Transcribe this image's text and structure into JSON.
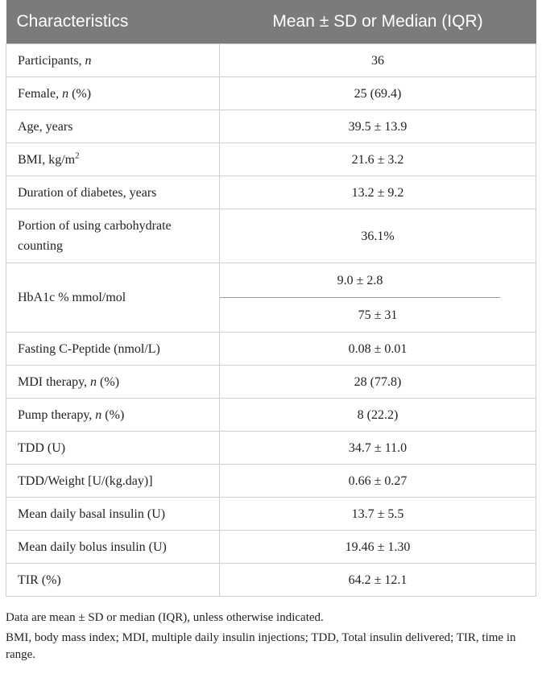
{
  "table": {
    "header": [
      "Characteristics",
      "Mean ± SD or Median (IQR)"
    ],
    "rows": [
      {
        "label": [
          {
            "text": "Participants, "
          },
          {
            "text": "n",
            "style": "italic"
          }
        ],
        "values": [
          "36"
        ]
      },
      {
        "label": [
          {
            "text": "Female, "
          },
          {
            "text": "n",
            "style": "italic"
          },
          {
            "text": " (%)"
          }
        ],
        "values": [
          "25 (69.4)"
        ]
      },
      {
        "label": [
          {
            "text": "Age, years"
          }
        ],
        "values": [
          "39.5 ± 13.9"
        ]
      },
      {
        "label": [
          {
            "text": "BMI, kg/m"
          },
          {
            "text": "2",
            "style": "sup"
          }
        ],
        "values": [
          "21.6 ± 3.2"
        ]
      },
      {
        "label": [
          {
            "text": "Duration of diabetes, years"
          }
        ],
        "values": [
          "13.2 ± 9.2"
        ]
      },
      {
        "label": [
          {
            "text": "Portion of using carbohydrate counting"
          }
        ],
        "values": [
          "36.1%"
        ]
      },
      {
        "label": [
          {
            "text": "HbA1c % mmol/mol"
          }
        ],
        "values": [
          "9.0 ± 2.8",
          "75 ± 31"
        ]
      },
      {
        "label": [
          {
            "text": "Fasting C-Peptide (nmol/L)"
          }
        ],
        "values": [
          "0.08 ± 0.01"
        ]
      },
      {
        "label": [
          {
            "text": "MDI therapy, "
          },
          {
            "text": "n",
            "style": "italic"
          },
          {
            "text": " (%)"
          }
        ],
        "values": [
          "28 (77.8)"
        ]
      },
      {
        "label": [
          {
            "text": "Pump therapy, "
          },
          {
            "text": "n",
            "style": "italic"
          },
          {
            "text": " (%)"
          }
        ],
        "values": [
          "8 (22.2)"
        ]
      },
      {
        "label": [
          {
            "text": "TDD (U)"
          }
        ],
        "values": [
          "34.7 ± 11.0"
        ]
      },
      {
        "label": [
          {
            "text": "TDD/Weight [U/(kg.day)]"
          }
        ],
        "values": [
          "0.66 ± 0.27"
        ]
      },
      {
        "label": [
          {
            "text": "Mean daily basal insulin (U)"
          }
        ],
        "values": [
          "13.7 ± 5.5"
        ]
      },
      {
        "label": [
          {
            "text": "Mean daily bolus insulin (U)"
          }
        ],
        "values": [
          "19.46 ± 1.30"
        ]
      },
      {
        "label": [
          {
            "text": "TIR (%)"
          }
        ],
        "values": [
          "64.2 ± 12.1"
        ]
      }
    ],
    "footnotes": [
      "Data are mean ± SD or median (IQR), unless otherwise indicated.",
      "BMI, body mass index; MDI, multiple daily insulin injections; TDD, Total insulin delivered; TIR, time in range."
    ]
  }
}
